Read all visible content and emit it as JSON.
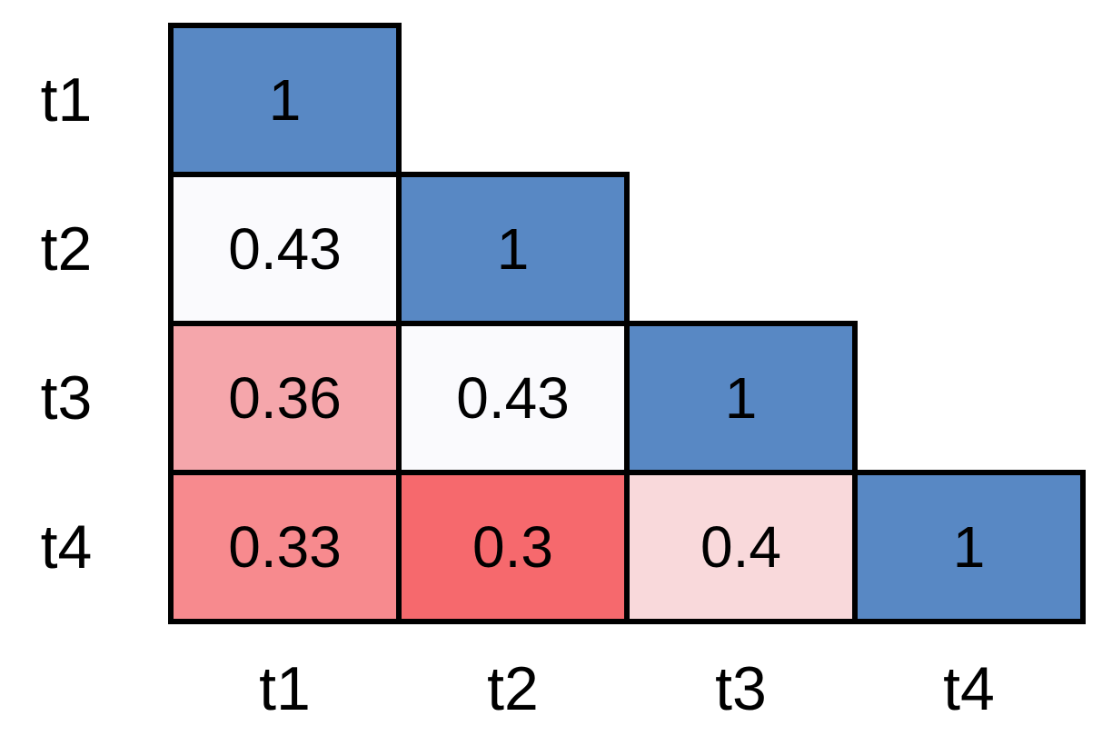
{
  "chart_data": {
    "type": "heatmap",
    "title": "",
    "shape": "lower-triangular",
    "rows": [
      "t1",
      "t2",
      "t3",
      "t4"
    ],
    "cols": [
      "t1",
      "t2",
      "t3",
      "t4"
    ],
    "values": [
      [
        1,
        null,
        null,
        null
      ],
      [
        0.43,
        1,
        null,
        null
      ],
      [
        0.36,
        0.43,
        1,
        null
      ],
      [
        0.33,
        0.3,
        0.4,
        1
      ]
    ],
    "colorscale": {
      "high_color": "#5888c4",
      "mid_color": "#fafafd",
      "low_color": "#f6696d",
      "high_value": 1,
      "low_value": 0.3
    },
    "grid": "thick black cell borders",
    "legend": "none"
  },
  "matrix": {
    "row_labels": [
      "t1",
      "t2",
      "t3",
      "t4"
    ],
    "col_labels": [
      "t1",
      "t2",
      "t3",
      "t4"
    ],
    "cells": [
      {
        "row": "t1",
        "col": "t1",
        "label": "1",
        "color": "#5888c4"
      },
      {
        "row": "t2",
        "col": "t1",
        "label": "0.43",
        "color": "#fafafd"
      },
      {
        "row": "t2",
        "col": "t2",
        "label": "1",
        "color": "#5888c4"
      },
      {
        "row": "t3",
        "col": "t1",
        "label": "0.36",
        "color": "#f5a6ab"
      },
      {
        "row": "t3",
        "col": "t2",
        "label": "0.43",
        "color": "#fafafd"
      },
      {
        "row": "t3",
        "col": "t3",
        "label": "1",
        "color": "#5888c4"
      },
      {
        "row": "t4",
        "col": "t1",
        "label": "0.33",
        "color": "#f78a8e"
      },
      {
        "row": "t4",
        "col": "t2",
        "label": "0.3",
        "color": "#f6696d"
      },
      {
        "row": "t4",
        "col": "t3",
        "label": "0.4",
        "color": "#f9d9db"
      },
      {
        "row": "t4",
        "col": "t4",
        "label": "1",
        "color": "#5888c4"
      }
    ],
    "colors": {
      "border": "#000000",
      "text": "#000000",
      "background": "#ffffff"
    }
  }
}
